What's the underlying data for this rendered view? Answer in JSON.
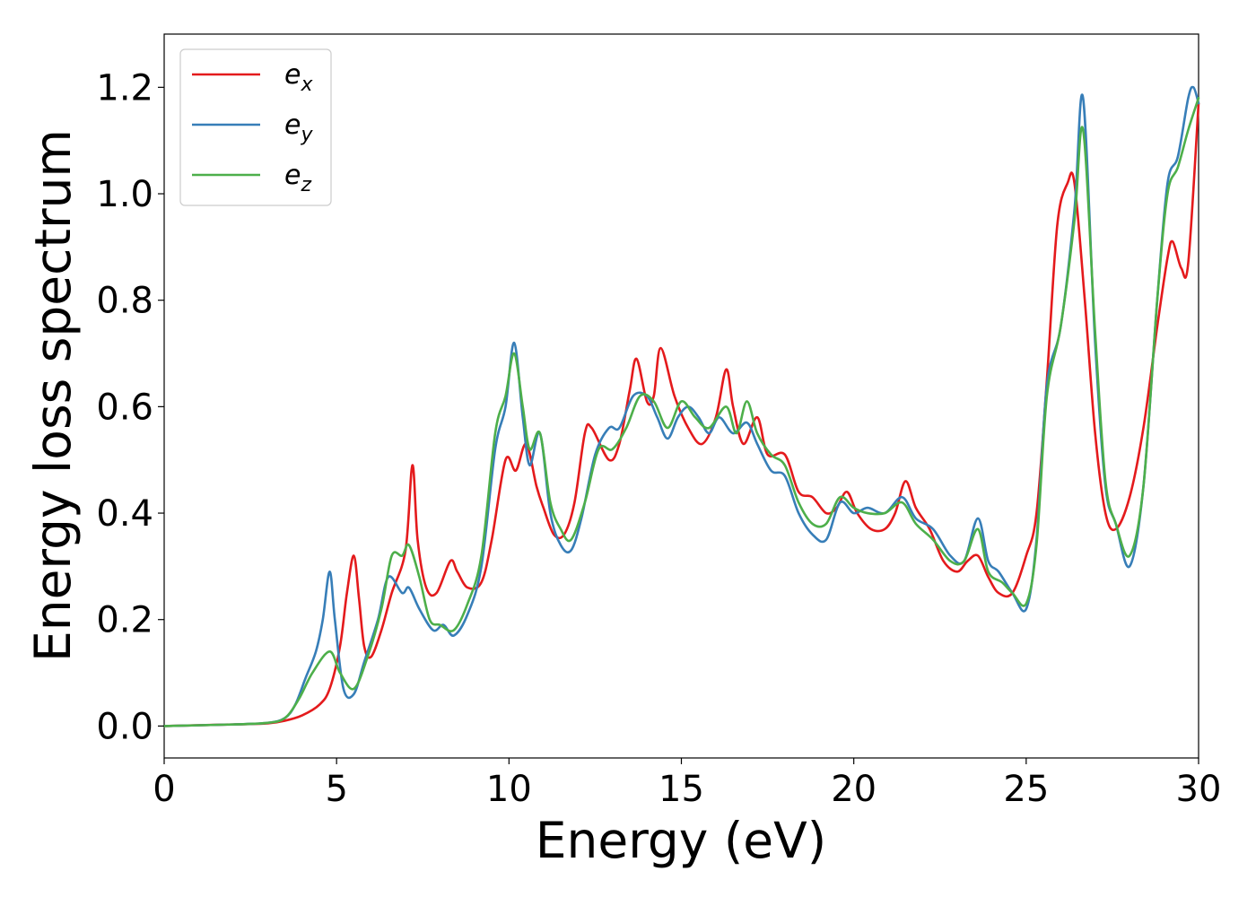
{
  "chart_data": {
    "type": "line",
    "xlabel": "Energy (eV)",
    "ylabel": "Energy loss spectrum",
    "xlim": [
      0,
      30
    ],
    "ylim": [
      -0.06,
      1.3
    ],
    "x_ticks": [
      "0",
      "5",
      "10",
      "15",
      "20",
      "25",
      "30"
    ],
    "y_ticks": [
      "0.0",
      "0.2",
      "0.4",
      "0.6",
      "0.8",
      "1.0",
      "1.2"
    ],
    "grid": false,
    "legend_position": "upper-left",
    "series": [
      {
        "name": "e",
        "subscript": "x",
        "color": "#e41a1c",
        "points": [
          [
            0,
            0
          ],
          [
            2,
            0.003
          ],
          [
            3,
            0.005
          ],
          [
            3.5,
            0.01
          ],
          [
            4,
            0.02
          ],
          [
            4.5,
            0.04
          ],
          [
            4.8,
            0.07
          ],
          [
            5.1,
            0.15
          ],
          [
            5.3,
            0.25
          ],
          [
            5.5,
            0.32
          ],
          [
            5.65,
            0.24
          ],
          [
            5.8,
            0.15
          ],
          [
            6.0,
            0.13
          ],
          [
            6.3,
            0.18
          ],
          [
            6.6,
            0.25
          ],
          [
            7.0,
            0.33
          ],
          [
            7.2,
            0.49
          ],
          [
            7.35,
            0.35
          ],
          [
            7.6,
            0.26
          ],
          [
            7.9,
            0.25
          ],
          [
            8.3,
            0.31
          ],
          [
            8.5,
            0.29
          ],
          [
            8.8,
            0.26
          ],
          [
            9.2,
            0.27
          ],
          [
            9.5,
            0.35
          ],
          [
            9.9,
            0.5
          ],
          [
            10.2,
            0.48
          ],
          [
            10.5,
            0.53
          ],
          [
            10.8,
            0.45
          ],
          [
            11.0,
            0.41
          ],
          [
            11.3,
            0.36
          ],
          [
            11.6,
            0.36
          ],
          [
            11.9,
            0.42
          ],
          [
            12.2,
            0.55
          ],
          [
            12.4,
            0.56
          ],
          [
            12.9,
            0.5
          ],
          [
            13.2,
            0.53
          ],
          [
            13.5,
            0.63
          ],
          [
            13.7,
            0.69
          ],
          [
            14.0,
            0.61
          ],
          [
            14.2,
            0.62
          ],
          [
            14.4,
            0.71
          ],
          [
            14.8,
            0.62
          ],
          [
            15.2,
            0.56
          ],
          [
            15.6,
            0.53
          ],
          [
            16.0,
            0.58
          ],
          [
            16.3,
            0.67
          ],
          [
            16.5,
            0.6
          ],
          [
            16.8,
            0.53
          ],
          [
            17.2,
            0.58
          ],
          [
            17.5,
            0.51
          ],
          [
            18.0,
            0.51
          ],
          [
            18.4,
            0.44
          ],
          [
            18.8,
            0.43
          ],
          [
            19.2,
            0.4
          ],
          [
            19.5,
            0.41
          ],
          [
            19.8,
            0.44
          ],
          [
            20.1,
            0.4
          ],
          [
            20.5,
            0.37
          ],
          [
            20.9,
            0.37
          ],
          [
            21.2,
            0.4
          ],
          [
            21.5,
            0.46
          ],
          [
            21.8,
            0.41
          ],
          [
            22.2,
            0.37
          ],
          [
            22.6,
            0.31
          ],
          [
            23.0,
            0.29
          ],
          [
            23.3,
            0.31
          ],
          [
            23.6,
            0.32
          ],
          [
            23.9,
            0.28
          ],
          [
            24.2,
            0.25
          ],
          [
            24.6,
            0.25
          ],
          [
            25.0,
            0.32
          ],
          [
            25.3,
            0.4
          ],
          [
            25.6,
            0.65
          ],
          [
            25.9,
            0.94
          ],
          [
            26.2,
            1.02
          ],
          [
            26.4,
            1.02
          ],
          [
            26.7,
            0.8
          ],
          [
            27.0,
            0.55
          ],
          [
            27.3,
            0.4
          ],
          [
            27.6,
            0.37
          ],
          [
            28.0,
            0.43
          ],
          [
            28.4,
            0.56
          ],
          [
            28.8,
            0.75
          ],
          [
            29.1,
            0.88
          ],
          [
            29.25,
            0.91
          ],
          [
            29.5,
            0.86
          ],
          [
            29.7,
            0.87
          ],
          [
            30,
            1.17
          ]
        ]
      },
      {
        "name": "e",
        "subscript": "y",
        "color": "#377eb8",
        "points": [
          [
            0,
            0
          ],
          [
            2,
            0.003
          ],
          [
            3,
            0.006
          ],
          [
            3.5,
            0.015
          ],
          [
            3.8,
            0.04
          ],
          [
            4.1,
            0.09
          ],
          [
            4.4,
            0.14
          ],
          [
            4.6,
            0.2
          ],
          [
            4.8,
            0.29
          ],
          [
            4.95,
            0.2
          ],
          [
            5.2,
            0.07
          ],
          [
            5.5,
            0.06
          ],
          [
            5.8,
            0.12
          ],
          [
            6.2,
            0.2
          ],
          [
            6.5,
            0.28
          ],
          [
            6.9,
            0.25
          ],
          [
            7.1,
            0.26
          ],
          [
            7.4,
            0.22
          ],
          [
            7.8,
            0.18
          ],
          [
            8.1,
            0.19
          ],
          [
            8.4,
            0.17
          ],
          [
            8.8,
            0.21
          ],
          [
            9.2,
            0.3
          ],
          [
            9.6,
            0.52
          ],
          [
            9.9,
            0.6
          ],
          [
            10.15,
            0.72
          ],
          [
            10.4,
            0.58
          ],
          [
            10.6,
            0.49
          ],
          [
            10.9,
            0.55
          ],
          [
            11.2,
            0.4
          ],
          [
            11.5,
            0.34
          ],
          [
            11.8,
            0.33
          ],
          [
            12.1,
            0.39
          ],
          [
            12.5,
            0.51
          ],
          [
            12.9,
            0.56
          ],
          [
            13.2,
            0.56
          ],
          [
            13.6,
            0.62
          ],
          [
            14.0,
            0.62
          ],
          [
            14.3,
            0.58
          ],
          [
            14.6,
            0.54
          ],
          [
            14.9,
            0.58
          ],
          [
            15.2,
            0.6
          ],
          [
            15.5,
            0.58
          ],
          [
            15.8,
            0.55
          ],
          [
            16.1,
            0.58
          ],
          [
            16.5,
            0.55
          ],
          [
            16.9,
            0.57
          ],
          [
            17.2,
            0.53
          ],
          [
            17.6,
            0.48
          ],
          [
            18.0,
            0.47
          ],
          [
            18.4,
            0.4
          ],
          [
            18.8,
            0.36
          ],
          [
            19.2,
            0.35
          ],
          [
            19.6,
            0.42
          ],
          [
            20.0,
            0.4
          ],
          [
            20.4,
            0.41
          ],
          [
            20.9,
            0.4
          ],
          [
            21.4,
            0.43
          ],
          [
            21.8,
            0.39
          ],
          [
            22.3,
            0.37
          ],
          [
            22.8,
            0.32
          ],
          [
            23.2,
            0.31
          ],
          [
            23.6,
            0.39
          ],
          [
            23.9,
            0.31
          ],
          [
            24.2,
            0.29
          ],
          [
            24.6,
            0.25
          ],
          [
            25.0,
            0.22
          ],
          [
            25.3,
            0.35
          ],
          [
            25.6,
            0.64
          ],
          [
            26.0,
            0.75
          ],
          [
            26.4,
            0.97
          ],
          [
            26.65,
            1.18
          ],
          [
            27.0,
            0.72
          ],
          [
            27.3,
            0.45
          ],
          [
            27.6,
            0.38
          ],
          [
            28.0,
            0.3
          ],
          [
            28.4,
            0.45
          ],
          [
            28.8,
            0.8
          ],
          [
            29.1,
            1.02
          ],
          [
            29.4,
            1.07
          ],
          [
            29.7,
            1.18
          ],
          [
            29.85,
            1.2
          ],
          [
            30,
            1.17
          ]
        ]
      },
      {
        "name": "e",
        "subscript": "z",
        "color": "#4daf4a",
        "points": [
          [
            0,
            0
          ],
          [
            2,
            0.003
          ],
          [
            3,
            0.006
          ],
          [
            3.5,
            0.015
          ],
          [
            3.9,
            0.05
          ],
          [
            4.3,
            0.1
          ],
          [
            4.8,
            0.14
          ],
          [
            5.1,
            0.1
          ],
          [
            5.5,
            0.07
          ],
          [
            5.9,
            0.13
          ],
          [
            6.3,
            0.22
          ],
          [
            6.6,
            0.32
          ],
          [
            6.9,
            0.32
          ],
          [
            7.1,
            0.34
          ],
          [
            7.4,
            0.28
          ],
          [
            7.7,
            0.2
          ],
          [
            8.0,
            0.19
          ],
          [
            8.4,
            0.18
          ],
          [
            8.8,
            0.23
          ],
          [
            9.2,
            0.32
          ],
          [
            9.6,
            0.55
          ],
          [
            9.9,
            0.62
          ],
          [
            10.15,
            0.7
          ],
          [
            10.4,
            0.6
          ],
          [
            10.6,
            0.52
          ],
          [
            10.9,
            0.55
          ],
          [
            11.2,
            0.42
          ],
          [
            11.5,
            0.37
          ],
          [
            11.8,
            0.35
          ],
          [
            12.2,
            0.42
          ],
          [
            12.6,
            0.52
          ],
          [
            13.0,
            0.52
          ],
          [
            13.4,
            0.56
          ],
          [
            13.8,
            0.62
          ],
          [
            14.2,
            0.61
          ],
          [
            14.6,
            0.56
          ],
          [
            15.0,
            0.61
          ],
          [
            15.4,
            0.58
          ],
          [
            15.8,
            0.56
          ],
          [
            16.3,
            0.6
          ],
          [
            16.6,
            0.55
          ],
          [
            16.9,
            0.61
          ],
          [
            17.2,
            0.55
          ],
          [
            17.6,
            0.51
          ],
          [
            18.0,
            0.49
          ],
          [
            18.4,
            0.42
          ],
          [
            18.8,
            0.38
          ],
          [
            19.2,
            0.38
          ],
          [
            19.6,
            0.43
          ],
          [
            20.0,
            0.41
          ],
          [
            20.4,
            0.4
          ],
          [
            20.9,
            0.4
          ],
          [
            21.4,
            0.42
          ],
          [
            21.8,
            0.38
          ],
          [
            22.3,
            0.35
          ],
          [
            22.8,
            0.31
          ],
          [
            23.2,
            0.31
          ],
          [
            23.6,
            0.37
          ],
          [
            23.9,
            0.29
          ],
          [
            24.3,
            0.27
          ],
          [
            24.6,
            0.25
          ],
          [
            25.0,
            0.23
          ],
          [
            25.3,
            0.34
          ],
          [
            25.6,
            0.62
          ],
          [
            26.0,
            0.75
          ],
          [
            26.4,
            0.95
          ],
          [
            26.65,
            1.12
          ],
          [
            27.0,
            0.74
          ],
          [
            27.3,
            0.46
          ],
          [
            27.6,
            0.38
          ],
          [
            28.0,
            0.32
          ],
          [
            28.4,
            0.45
          ],
          [
            28.8,
            0.8
          ],
          [
            29.1,
            1.0
          ],
          [
            29.4,
            1.05
          ],
          [
            29.7,
            1.12
          ],
          [
            30,
            1.18
          ]
        ]
      }
    ]
  }
}
